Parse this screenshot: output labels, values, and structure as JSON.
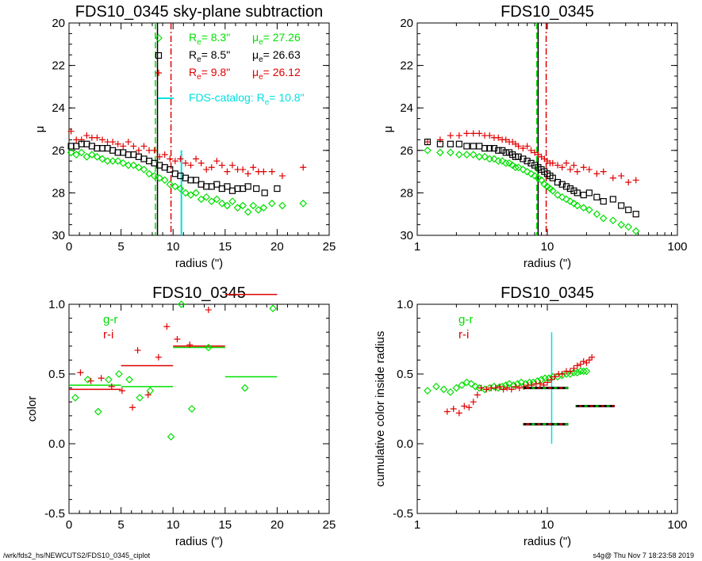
{
  "footer": {
    "path": "/wrk/fds2_hs/NEWCUTS2/FDS10_0345_ciplot",
    "stamp": "s4g@  Thu Nov  7 18:23:58 2019"
  },
  "colors": {
    "green": "#00e000",
    "black": "#000000",
    "red": "#e00000",
    "cyan": "#00e0e0"
  },
  "chart_data": [
    {
      "id": "p1",
      "type": "scatter",
      "title": "FDS10_0345 sky-plane subtraction",
      "xlabel": "radius (\")",
      "ylabel": "μ",
      "xscale": "linear",
      "xlim": [
        0,
        25
      ],
      "ylim": [
        30,
        20
      ],
      "xticks": [
        0,
        5,
        10,
        15,
        20,
        25
      ],
      "yticks": [
        20,
        22,
        24,
        26,
        28,
        30
      ],
      "vlines": [
        {
          "x": 8.3,
          "color": "green",
          "style": "dash"
        },
        {
          "x": 8.5,
          "color": "black",
          "style": "solid"
        },
        {
          "x": 9.8,
          "color": "red",
          "style": "dashdot"
        }
      ],
      "cyan_segment": {
        "x": 10.8,
        "y": [
          26.0,
          30.0
        ]
      },
      "legend": [
        {
          "marker": "diamond",
          "color": "green",
          "re_label": "R",
          "re_sub": "e",
          "re_value": "=   8.3\"",
          "mu_label": "μ",
          "mu_sub": "e",
          "mu_value": "= 27.26"
        },
        {
          "marker": "square",
          "color": "black",
          "re_label": "R",
          "re_sub": "e",
          "re_value": "=   8.5\"",
          "mu_label": "μ",
          "mu_sub": "e",
          "mu_value": "= 26.63"
        },
        {
          "marker": "plus",
          "color": "red",
          "re_label": "R",
          "re_sub": "e",
          "re_value": "=   9.8\"",
          "mu_label": "μ",
          "mu_sub": "e",
          "mu_value": "= 26.12"
        }
      ],
      "catalog": {
        "prefix": "FDS-catalog: R",
        "sub": "e",
        "suffix": "=  10.8\"",
        "color": "cyan"
      },
      "series": [
        {
          "color": "red",
          "marker": "plus",
          "x": [
            0.2,
            0.7,
            1.2,
            1.7,
            2.2,
            2.7,
            3.2,
            3.7,
            4.2,
            4.7,
            5.2,
            5.7,
            6.2,
            6.7,
            7.2,
            7.7,
            8.2,
            8.7,
            9.2,
            9.7,
            10.2,
            10.7,
            11.2,
            11.7,
            12.2,
            12.7,
            13.2,
            13.7,
            14.2,
            14.7,
            15.2,
            15.7,
            16.2,
            16.7,
            17.2,
            17.7,
            18.2,
            18.7,
            19.5,
            20.5,
            22.5
          ],
          "y": [
            25.1,
            25.5,
            25.5,
            25.3,
            25.4,
            25.4,
            25.5,
            25.6,
            25.6,
            25.7,
            25.8,
            25.6,
            25.8,
            26.0,
            25.8,
            26.0,
            26.0,
            26.3,
            26.2,
            26.4,
            26.5,
            26.4,
            26.6,
            26.7,
            26.4,
            26.6,
            26.9,
            26.8,
            26.5,
            26.7,
            27.0,
            26.7,
            26.9,
            26.9,
            27.1,
            26.8,
            27.0,
            27.0,
            27.0,
            27.2,
            26.8
          ]
        },
        {
          "color": "black",
          "marker": "square",
          "x": [
            0.2,
            0.7,
            1.2,
            1.7,
            2.2,
            2.7,
            3.2,
            3.7,
            4.2,
            4.7,
            5.2,
            5.7,
            6.2,
            6.7,
            7.2,
            7.7,
            8.2,
            8.7,
            9.2,
            9.7,
            10.2,
            10.7,
            11.2,
            11.7,
            12.2,
            12.7,
            13.2,
            13.7,
            14.2,
            14.7,
            15.2,
            15.7,
            16.2,
            16.7,
            17.2,
            18.0,
            18.8,
            20.0
          ],
          "y": [
            25.8,
            25.8,
            25.7,
            25.7,
            25.8,
            25.9,
            25.9,
            25.9,
            26.0,
            26.1,
            26.1,
            26.2,
            26.2,
            26.3,
            26.4,
            26.5,
            26.6,
            26.7,
            26.8,
            26.9,
            27.1,
            27.2,
            27.3,
            27.4,
            27.4,
            27.6,
            27.7,
            27.7,
            27.6,
            27.8,
            27.7,
            27.9,
            27.8,
            27.8,
            27.7,
            27.8,
            28.0,
            27.8
          ]
        },
        {
          "color": "green",
          "marker": "diamond",
          "x": [
            0.2,
            0.7,
            1.2,
            1.7,
            2.2,
            2.7,
            3.2,
            3.7,
            4.2,
            4.7,
            5.2,
            5.7,
            6.2,
            6.7,
            7.2,
            7.7,
            8.2,
            8.7,
            9.2,
            9.7,
            10.2,
            10.7,
            11.2,
            11.7,
            12.2,
            12.7,
            13.2,
            13.7,
            14.2,
            14.7,
            15.2,
            15.7,
            16.2,
            16.7,
            17.2,
            17.7,
            18.2,
            18.7,
            19.5,
            20.5,
            22.5
          ],
          "y": [
            26.1,
            26.2,
            26.1,
            26.3,
            26.2,
            26.3,
            26.4,
            26.5,
            26.5,
            26.5,
            26.6,
            26.7,
            26.7,
            26.8,
            26.9,
            27.1,
            27.2,
            27.3,
            27.4,
            27.6,
            27.7,
            27.8,
            28.0,
            28.1,
            28.0,
            28.3,
            28.2,
            28.4,
            28.3,
            28.5,
            28.6,
            28.4,
            28.7,
            28.6,
            28.9,
            28.6,
            28.8,
            28.7,
            28.5,
            28.6,
            28.5
          ]
        }
      ]
    },
    {
      "id": "p2",
      "type": "scatter",
      "title": "FDS10_0345",
      "xlabel": "radius (\")",
      "ylabel": "μ",
      "xscale": "log",
      "xlim": [
        1,
        100
      ],
      "ylim": [
        30,
        20
      ],
      "xticks": [
        1,
        10,
        100
      ],
      "yticks": [
        20,
        22,
        24,
        26,
        28,
        30
      ],
      "vlines": [
        {
          "x": 8.3,
          "color": "green",
          "style": "dash"
        },
        {
          "x": 8.5,
          "color": "black",
          "style": "solid"
        },
        {
          "x": 9.8,
          "color": "red",
          "style": "dashdot"
        }
      ],
      "series": [
        {
          "color": "red",
          "marker": "plus",
          "x": [
            1.2,
            1.5,
            1.8,
            2.1,
            2.4,
            2.7,
            3.0,
            3.3,
            3.6,
            3.9,
            4.2,
            4.5,
            4.8,
            5.1,
            5.4,
            5.7,
            6.0,
            6.5,
            7.0,
            7.5,
            8.0,
            8.5,
            9.0,
            9.5,
            10.0,
            10.5,
            11,
            12,
            13,
            14,
            15,
            16,
            17,
            19,
            21,
            24,
            27,
            32,
            37,
            42,
            48
          ],
          "y": [
            25.6,
            25.5,
            25.3,
            25.3,
            25.2,
            25.2,
            25.2,
            25.3,
            25.3,
            25.4,
            25.4,
            25.5,
            25.5,
            25.6,
            25.6,
            25.7,
            25.8,
            25.9,
            25.8,
            26.0,
            26.1,
            26.2,
            26.3,
            26.4,
            26.5,
            26.6,
            26.6,
            26.7,
            26.8,
            26.6,
            26.9,
            26.7,
            27.0,
            26.8,
            26.9,
            27.1,
            27.0,
            27.3,
            27.2,
            27.5,
            27.4
          ]
        },
        {
          "color": "black",
          "marker": "square",
          "x": [
            1.2,
            1.5,
            1.8,
            2.1,
            2.4,
            2.7,
            3.0,
            3.3,
            3.6,
            3.9,
            4.2,
            4.5,
            4.8,
            5.1,
            5.4,
            5.7,
            6.0,
            6.5,
            7.0,
            7.5,
            8.0,
            8.5,
            9.0,
            9.5,
            10.0,
            10.5,
            11,
            12,
            13,
            14,
            15,
            16,
            17,
            19,
            21,
            24,
            27,
            32,
            37,
            42,
            48
          ],
          "y": [
            25.6,
            25.7,
            25.7,
            25.7,
            25.8,
            25.8,
            25.8,
            25.9,
            25.9,
            25.9,
            26.0,
            26.0,
            26.1,
            26.1,
            26.2,
            26.3,
            26.3,
            26.4,
            26.5,
            26.6,
            26.7,
            26.8,
            26.9,
            27.0,
            27.1,
            27.2,
            27.3,
            27.5,
            27.6,
            27.7,
            27.8,
            27.9,
            28.0,
            28.1,
            28.0,
            28.2,
            28.4,
            28.3,
            28.6,
            28.8,
            29.0
          ]
        },
        {
          "color": "green",
          "marker": "diamond",
          "x": [
            1.2,
            1.5,
            1.8,
            2.1,
            2.4,
            2.7,
            3.0,
            3.3,
            3.6,
            3.9,
            4.2,
            4.5,
            4.8,
            5.1,
            5.4,
            5.7,
            6.0,
            6.5,
            7.0,
            7.5,
            8.0,
            8.5,
            9.0,
            9.5,
            10.0,
            10.5,
            11,
            12,
            13,
            14,
            15,
            16,
            17,
            19,
            21,
            24,
            27,
            32,
            37,
            42,
            48
          ],
          "y": [
            26.0,
            26.1,
            26.1,
            26.2,
            26.2,
            26.2,
            26.3,
            26.3,
            26.4,
            26.4,
            26.5,
            26.5,
            26.6,
            26.6,
            26.7,
            26.8,
            26.8,
            26.9,
            27.0,
            27.1,
            27.2,
            27.3,
            27.4,
            27.6,
            27.7,
            27.8,
            27.9,
            28.1,
            28.2,
            28.3,
            28.4,
            28.5,
            28.6,
            28.7,
            28.8,
            29.0,
            29.2,
            29.3,
            29.5,
            29.6,
            29.8
          ]
        }
      ]
    },
    {
      "id": "p3",
      "type": "scatter",
      "title": "FDS10_0345",
      "xlabel": "radius (\")",
      "ylabel": "color",
      "xscale": "linear",
      "xlim": [
        0,
        25
      ],
      "ylim": [
        -0.5,
        1.0
      ],
      "xticks": [
        0,
        5,
        10,
        15,
        20,
        25
      ],
      "yticks": [
        -0.5,
        0.0,
        0.5,
        1.0
      ],
      "ytick_labels": [
        "-0.5",
        "0.0",
        "0.5",
        "1.0"
      ],
      "legend": [
        {
          "label": "g-r",
          "color": "green"
        },
        {
          "label": "r-i",
          "color": "red"
        }
      ],
      "series": [
        {
          "name": "g-r",
          "color": "green",
          "marker": "diamond",
          "x": [
            0.6,
            1.8,
            2.8,
            3.8,
            4.8,
            5.8,
            6.8,
            7.8,
            9.8,
            10.8,
            11.8,
            13.4,
            16.9,
            19.6
          ],
          "y": [
            0.33,
            0.46,
            0.23,
            0.46,
            0.5,
            0.46,
            0.33,
            0.38,
            0.05,
            1.0,
            0.25,
            0.69,
            0.4,
            0.97
          ]
        },
        {
          "name": "r-i",
          "color": "red",
          "marker": "plus",
          "x": [
            1.1,
            2.1,
            3.1,
            4.1,
            5.1,
            6.1,
            6.6,
            7.6,
            8.6,
            9.4,
            10.4,
            11.6,
            13.4
          ],
          "y": [
            0.51,
            0.45,
            0.47,
            0.41,
            0.38,
            0.26,
            0.67,
            0.35,
            0.62,
            0.84,
            0.75,
            0.71,
            0.96
          ]
        }
      ],
      "segments": [
        {
          "color": "green",
          "x": [
            0.0,
            5.0
          ],
          "y": 0.42
        },
        {
          "color": "green",
          "x": [
            5.0,
            10.0
          ],
          "y": 0.41
        },
        {
          "color": "green",
          "x": [
            10.0,
            15.0
          ],
          "y": 0.69
        },
        {
          "color": "green",
          "x": [
            15.0,
            20.0
          ],
          "y": 0.48
        },
        {
          "color": "red",
          "x": [
            0.0,
            5.0
          ],
          "y": 0.39
        },
        {
          "color": "red",
          "x": [
            5.0,
            10.0
          ],
          "y": 0.56
        },
        {
          "color": "red",
          "x": [
            10.0,
            15.0
          ],
          "y": 0.7
        },
        {
          "color": "red",
          "x": [
            15.0,
            20.0
          ],
          "y": 1.07
        }
      ]
    },
    {
      "id": "p4",
      "type": "scatter",
      "title": "FDS10_0345",
      "xlabel": "radius (\")",
      "ylabel": "cumulative color inside radius",
      "xscale": "log",
      "xlim": [
        1,
        100
      ],
      "ylim": [
        -0.5,
        1.0
      ],
      "xticks": [
        1,
        10,
        100
      ],
      "yticks": [
        -0.5,
        0.0,
        0.5,
        1.0
      ],
      "ytick_labels": [
        "-0.5",
        "0.0",
        "0.5",
        "1.0"
      ],
      "legend": [
        {
          "label": "g-r",
          "color": "green"
        },
        {
          "label": "r-i",
          "color": "red"
        }
      ],
      "vline": {
        "x": 10.8,
        "color": "cyan",
        "y": [
          0.0,
          0.8
        ]
      },
      "series": [
        {
          "name": "g-r",
          "color": "green",
          "marker": "diamond",
          "x": [
            1.2,
            1.4,
            1.6,
            1.8,
            2.0,
            2.2,
            2.4,
            2.6,
            2.8,
            3.0,
            3.3,
            3.6,
            3.9,
            4.2,
            4.5,
            4.8,
            5.1,
            5.5,
            5.9,
            6.3,
            6.8,
            7.3,
            7.8,
            8.4,
            9.0,
            9.6,
            10.3,
            11,
            12,
            13,
            14,
            15,
            16,
            17,
            18,
            19,
            20
          ],
          "y": [
            0.38,
            0.41,
            0.39,
            0.37,
            0.4,
            0.42,
            0.44,
            0.43,
            0.41,
            0.4,
            0.39,
            0.4,
            0.41,
            0.4,
            0.41,
            0.42,
            0.43,
            0.42,
            0.43,
            0.44,
            0.43,
            0.44,
            0.44,
            0.45,
            0.46,
            0.47,
            0.47,
            0.48,
            0.48,
            0.49,
            0.5,
            0.5,
            0.51,
            0.51,
            0.52,
            0.52,
            0.52
          ]
        },
        {
          "name": "r-i",
          "color": "red",
          "marker": "plus",
          "x": [
            1.7,
            1.9,
            2.1,
            2.3,
            2.5,
            2.7,
            2.9,
            3.1,
            3.4,
            3.7,
            4.0,
            4.3,
            4.6,
            4.9,
            5.3,
            5.7,
            6.1,
            6.6,
            7.1,
            7.6,
            8.2,
            8.8,
            9.4,
            10.0,
            10.7,
            11.4,
            12.2,
            13,
            14,
            15,
            16,
            17,
            18,
            19,
            20,
            21,
            22
          ],
          "y": [
            0.23,
            0.25,
            0.22,
            0.27,
            0.26,
            0.3,
            0.35,
            0.4,
            0.39,
            0.4,
            0.4,
            0.41,
            0.39,
            0.4,
            0.39,
            0.41,
            0.4,
            0.41,
            0.42,
            0.42,
            0.43,
            0.43,
            0.42,
            0.44,
            0.46,
            0.48,
            0.5,
            0.5,
            0.52,
            0.52,
            0.54,
            0.56,
            0.57,
            0.59,
            0.58,
            0.6,
            0.62
          ]
        }
      ],
      "segments": [
        {
          "x": [
            6.5,
            14.5
          ],
          "y": 0.4
        },
        {
          "x": [
            6.5,
            14.5
          ],
          "y": 0.14
        },
        {
          "x": [
            16.5,
            33.0
          ],
          "y": 0.27
        }
      ]
    }
  ]
}
